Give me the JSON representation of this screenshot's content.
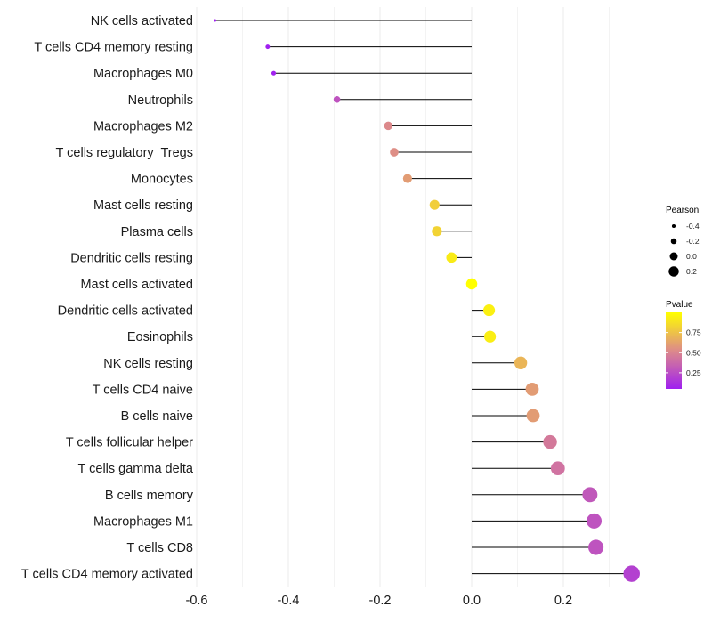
{
  "chart_data": {
    "type": "lollipop",
    "title": "",
    "xlabel": "",
    "ylabel": "",
    "xlim": [
      -0.6,
      0.35
    ],
    "x_ticks": [
      -0.6,
      -0.4,
      -0.2,
      0.0,
      0.2
    ],
    "x_tick_labels": [
      "-0.6",
      "-0.4",
      "-0.2",
      "0.0",
      "0.2"
    ],
    "grid": true,
    "categories": [
      "NK cells activated",
      "T cells CD4 memory resting",
      "Macrophages M0",
      "Neutrophils",
      "Macrophages M2",
      "T cells regulatory  Tregs",
      "Monocytes",
      "Mast cells resting",
      "Plasma cells",
      "Dendritic cells resting",
      "Mast cells activated",
      "Dendritic cells activated",
      "Eosinophils",
      "NK cells resting",
      "T cells CD4 naive",
      "B cells naive",
      "T cells follicular helper",
      "T cells gamma delta",
      "B cells memory",
      "Macrophages M1",
      "T cells CD8",
      "T cells CD4 memory activated"
    ],
    "pearson": [
      -0.56,
      -0.445,
      -0.432,
      -0.294,
      -0.182,
      -0.169,
      -0.14,
      -0.081,
      -0.076,
      -0.044,
      0.0,
      0.038,
      0.04,
      0.107,
      0.132,
      0.134,
      0.171,
      0.188,
      0.258,
      0.267,
      0.271,
      0.349
    ],
    "pvalue": [
      0.02,
      0.05,
      0.06,
      0.28,
      0.52,
      0.54,
      0.6,
      0.8,
      0.82,
      0.92,
      1.0,
      0.94,
      0.93,
      0.7,
      0.6,
      0.6,
      0.45,
      0.42,
      0.3,
      0.28,
      0.28,
      0.2
    ],
    "size_legend": {
      "title": "Pearson",
      "values": [
        -0.4,
        -0.2,
        0.0,
        0.2
      ],
      "labels": [
        "-0.4",
        "-0.2",
        "0.0",
        "0.2"
      ]
    },
    "color_legend": {
      "title": "Pvalue",
      "range": [
        0.05,
        1.0
      ],
      "ticks": [
        0.25,
        0.5,
        0.75
      ],
      "tick_labels": [
        "0.25",
        "0.50",
        "0.75"
      ],
      "low_color": "#a020f0",
      "mid_color": "#dd8a8a",
      "high_color": "#ffff00"
    },
    "legend_position": "right",
    "stem_color": "#000000",
    "grid_color": "#ebebeb"
  }
}
